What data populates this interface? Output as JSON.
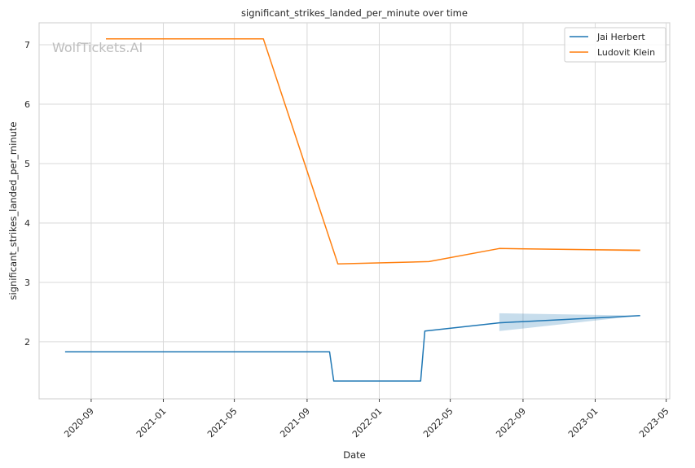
{
  "watermark": "WolfTickets.AI",
  "chart_data": {
    "type": "line",
    "title": "significant_strikes_landed_per_minute over time",
    "xlabel": "Date",
    "ylabel": "significant_strikes_landed_per_minute",
    "x_ticks": [
      "2020-09",
      "2021-01",
      "2021-05",
      "2021-09",
      "2022-01",
      "2022-05",
      "2022-09",
      "2023-01",
      "2023-05"
    ],
    "y_ticks": [
      2,
      3,
      4,
      5,
      6,
      7
    ],
    "xlim": [
      "2020-06-05",
      "2023-05-07"
    ],
    "ylim": [
      1.04,
      7.37
    ],
    "grid": true,
    "legend_position": "top-right",
    "series": [
      {
        "name": "Jai Herbert",
        "color": "#1f77b4",
        "points": [
          {
            "x": "2020-07-19",
            "y": 1.83
          },
          {
            "x": "2021-10-09",
            "y": 1.83
          },
          {
            "x": "2021-10-16",
            "y": 1.34
          },
          {
            "x": "2022-03-12",
            "y": 1.34
          },
          {
            "x": "2022-03-19",
            "y": 2.18
          },
          {
            "x": "2022-07-23",
            "y": 2.32
          },
          {
            "x": "2023-03-18",
            "y": 2.44
          }
        ],
        "confidence_band": [
          {
            "x": "2022-07-23",
            "low": 2.18,
            "high": 2.48
          },
          {
            "x": "2023-03-18",
            "low": 2.44,
            "high": 2.44
          }
        ]
      },
      {
        "name": "Ludovit Klein",
        "color": "#ff7f0e",
        "points": [
          {
            "x": "2020-09-26",
            "y": 7.1
          },
          {
            "x": "2021-06-19",
            "y": 7.1
          },
          {
            "x": "2021-10-23",
            "y": 3.31
          },
          {
            "x": "2022-03-26",
            "y": 3.35
          },
          {
            "x": "2022-07-23",
            "y": 3.57
          },
          {
            "x": "2023-03-18",
            "y": 3.54
          }
        ],
        "confidence_band": [
          {
            "x": "2022-07-23",
            "low": 3.57,
            "high": 3.57
          },
          {
            "x": "2023-03-18",
            "low": 3.52,
            "high": 3.56
          }
        ]
      }
    ]
  }
}
